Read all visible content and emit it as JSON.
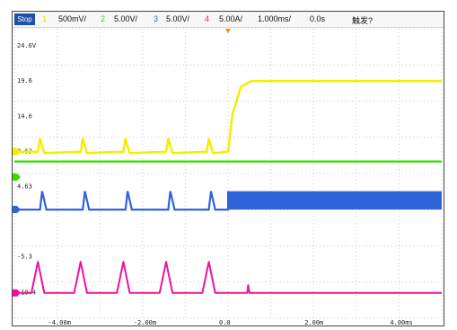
{
  "header": {
    "run_state": "Stop",
    "channels": [
      {
        "id": "1",
        "scale": "500mV/",
        "color": "#e8e800"
      },
      {
        "id": "2",
        "scale": "5.00V/",
        "color": "#33dd00"
      },
      {
        "id": "3",
        "scale": "5.00V/",
        "color": "#2f64d8"
      },
      {
        "id": "4",
        "scale": "5.00A/",
        "color": "#ee1199"
      }
    ],
    "timebase": "1.000ms/",
    "delay": "0.0s",
    "trigger": "触发?"
  },
  "colors": {
    "ch1": "#f2ef00",
    "ch2": "#33dd00",
    "ch3": "#2f64d8",
    "ch4": "#ee1199",
    "grid": "#cccccc",
    "trigger_marker": "#ff8c00"
  },
  "chart_data": {
    "type": "line",
    "y_axis_labels": [
      "24.6V",
      "19.6",
      "14.6",
      "9.63",
      "4.63",
      "-5.3",
      "-10.4"
    ],
    "x_axis_labels": [
      "-4.00m",
      "-2.00m",
      "0.0",
      "2.00m",
      "4.00ms"
    ],
    "x_ticks_ms": [
      -4,
      -2,
      0,
      2,
      4
    ],
    "xlim_ms": [
      -5,
      5
    ],
    "grid": true,
    "series": [
      {
        "id": "1",
        "description_values_V": "ramp from ~9.6 to ~19.6 at t=0",
        "points": [
          [
            -5,
            9.6
          ],
          [
            -4.45,
            9.6
          ],
          [
            -4.4,
            11.4
          ],
          [
            -4.3,
            9.4
          ],
          [
            -3.45,
            9.6
          ],
          [
            -3.4,
            11.4
          ],
          [
            -3.3,
            9.4
          ],
          [
            -2.45,
            9.6
          ],
          [
            -2.4,
            11.4
          ],
          [
            -2.3,
            9.4
          ],
          [
            -1.45,
            9.6
          ],
          [
            -1.4,
            11.4
          ],
          [
            -1.3,
            9.4
          ],
          [
            -0.5,
            9.6
          ],
          [
            -0.45,
            11.4
          ],
          [
            -0.35,
            9.4
          ],
          [
            0,
            9.6
          ],
          [
            0.1,
            14.8
          ],
          [
            0.3,
            18.8
          ],
          [
            0.55,
            19.6
          ],
          [
            5,
            19.6
          ]
        ]
      },
      {
        "id": "2",
        "points": [
          [
            -5,
            8.2
          ],
          [
            5,
            8.2
          ]
        ]
      },
      {
        "id": "3",
        "points": [
          [
            -5,
            1.4
          ],
          [
            -4.4,
            1.4
          ],
          [
            -4.35,
            4.0
          ],
          [
            -4.25,
            1.4
          ],
          [
            -3.4,
            1.4
          ],
          [
            -3.35,
            4.0
          ],
          [
            -3.25,
            1.4
          ],
          [
            -2.4,
            1.4
          ],
          [
            -2.35,
            4.0
          ],
          [
            -2.25,
            1.4
          ],
          [
            -1.4,
            1.4
          ],
          [
            -1.35,
            4.0
          ],
          [
            -1.25,
            1.4
          ],
          [
            -0.45,
            1.4
          ],
          [
            -0.4,
            4.0
          ],
          [
            -0.3,
            1.4
          ],
          [
            0,
            1.4
          ],
          [
            0,
            4.0
          ],
          [
            5,
            4.0
          ],
          [
            5,
            1.4
          ],
          [
            0,
            1.4
          ]
        ]
      },
      {
        "id": "4",
        "points": [
          [
            -5,
            -10.4
          ],
          [
            -4.6,
            -10.4
          ],
          [
            -4.45,
            -6.0
          ],
          [
            -4.3,
            -10.4
          ],
          [
            -3.6,
            -10.4
          ],
          [
            -3.45,
            -6.0
          ],
          [
            -3.3,
            -10.4
          ],
          [
            -2.6,
            -10.4
          ],
          [
            -2.45,
            -6.0
          ],
          [
            -2.3,
            -10.4
          ],
          [
            -1.6,
            -10.4
          ],
          [
            -1.45,
            -6.0
          ],
          [
            -1.3,
            -10.4
          ],
          [
            -0.6,
            -10.4
          ],
          [
            -0.45,
            -6.0
          ],
          [
            -0.3,
            -10.4
          ],
          [
            0,
            -10.4
          ],
          [
            0.45,
            -10.4
          ],
          [
            0.47,
            -9.3
          ],
          [
            0.5,
            -10.4
          ],
          [
            5,
            -10.4
          ]
        ]
      }
    ]
  }
}
